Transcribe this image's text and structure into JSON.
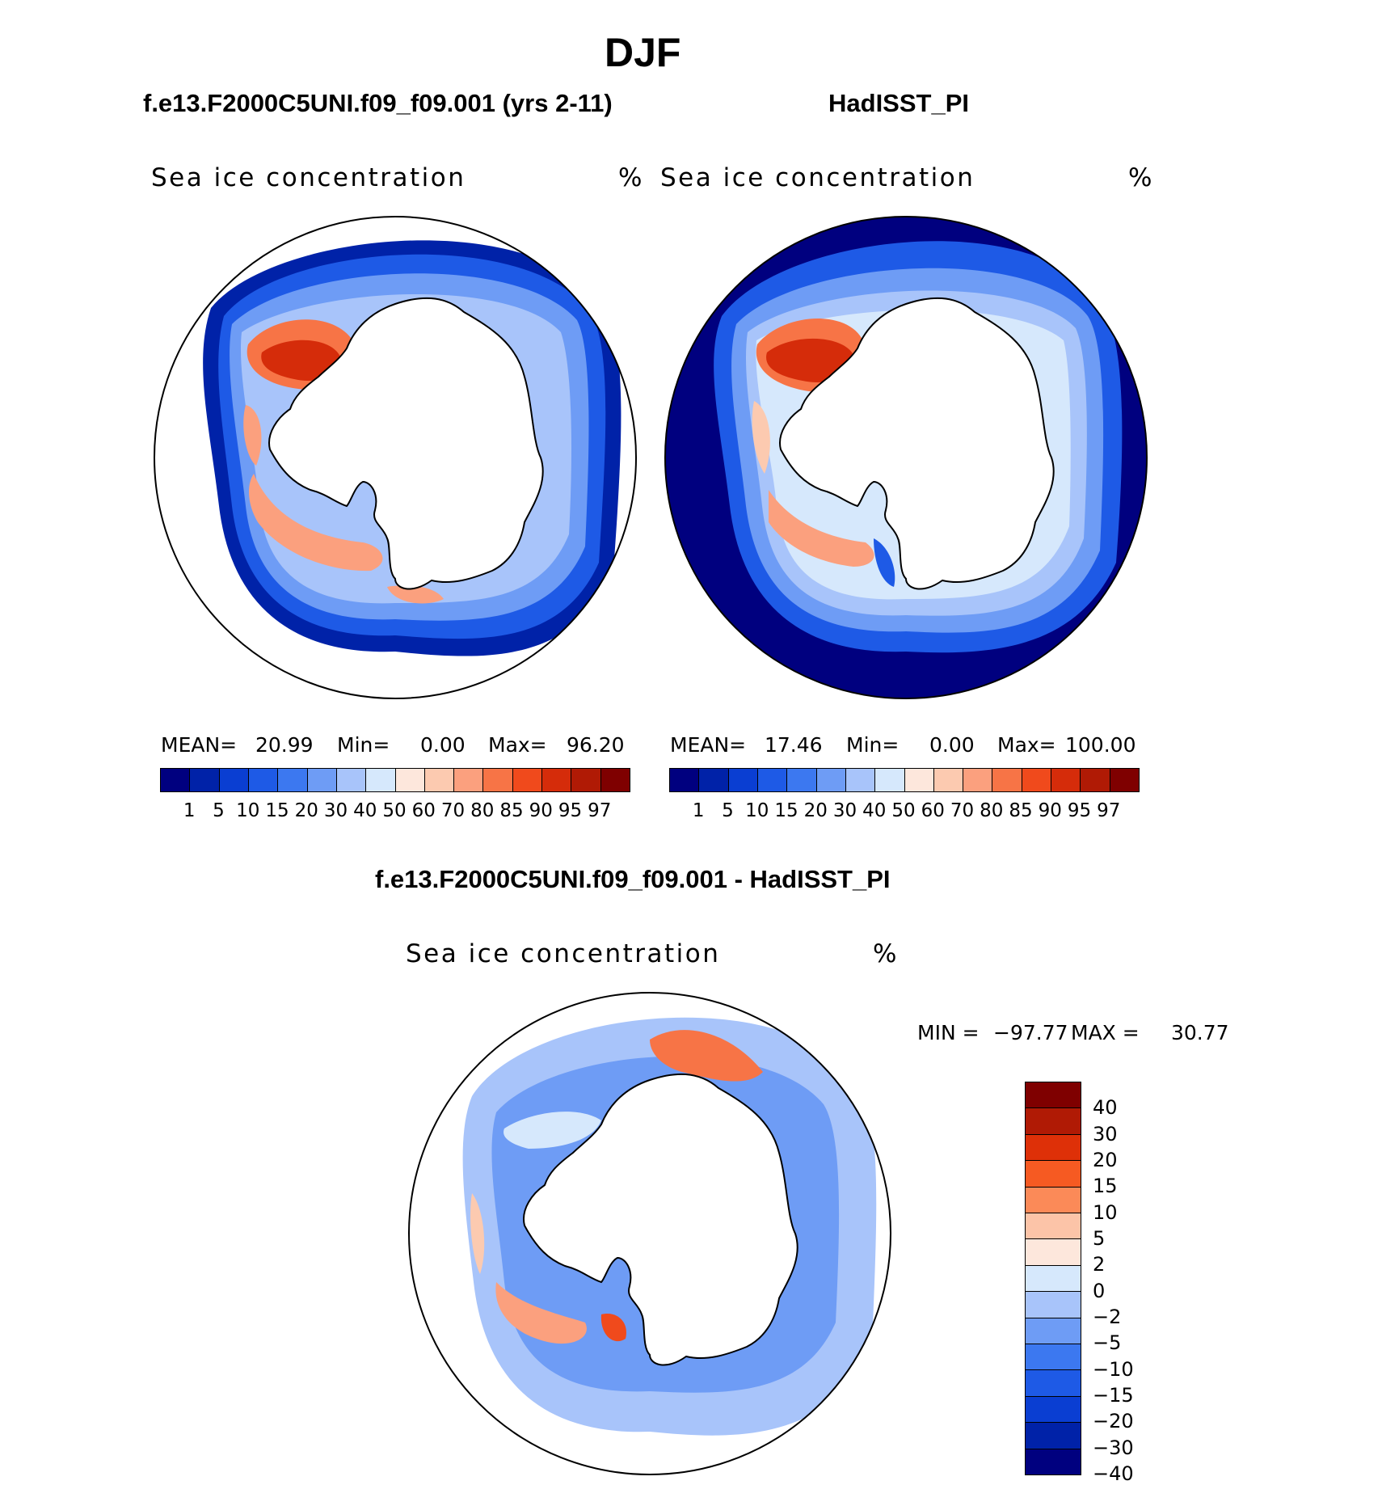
{
  "figure": {
    "season": "DJF",
    "field_label": "Sea ice concentration",
    "units": "%"
  },
  "panels": [
    {
      "title": "f.e13.F2000C5UNI.f09_f09.001 (yrs 2-11)",
      "stats": {
        "mean_label": "MEAN=",
        "mean": "20.99",
        "min_label": "Min=",
        "min": "0.00",
        "max_label": "Max=",
        "max": "96.20"
      }
    },
    {
      "title": "HadISST_PI",
      "stats": {
        "mean_label": "MEAN=",
        "mean": "17.46",
        "min_label": "Min=",
        "min": "0.00",
        "max_label": "Max=",
        "max": "100.00"
      }
    },
    {
      "title": "f.e13.F2000C5UNI.f09_f09.001 - HadISST_PI",
      "stats": {
        "min_label": "MIN =",
        "min": "−97.77",
        "max_label": "MAX =",
        "max": "30.77"
      }
    }
  ],
  "colorbars": {
    "concentration": {
      "colors": [
        "#00007f",
        "#0022a8",
        "#0a3ed2",
        "#1e5ae6",
        "#3c78f0",
        "#6e9cf5",
        "#a8c4fa",
        "#d6e8fc",
        "#fde7dc",
        "#fccab0",
        "#fba07e",
        "#f77446",
        "#f04a1c",
        "#d52c0a",
        "#b01a05",
        "#7f0000"
      ],
      "ticks": [
        "1",
        "5",
        "10",
        "15",
        "20",
        "30",
        "40",
        "50",
        "60",
        "70",
        "80",
        "85",
        "90",
        "95",
        "97"
      ]
    },
    "difference": {
      "colors": [
        "#7f0000",
        "#b01a05",
        "#de3008",
        "#f65a22",
        "#fb8a58",
        "#fcc4a8",
        "#fde7dc",
        "#d6e8fc",
        "#a8c4fa",
        "#6e9cf5",
        "#3c78f0",
        "#1e5ae6",
        "#0a3ed2",
        "#0022a8",
        "#00007f"
      ],
      "ticks": [
        "40",
        "30",
        "20",
        "15",
        "10",
        "5",
        "2",
        "0",
        "−2",
        "−5",
        "−10",
        "−15",
        "−20",
        "−30",
        "−40"
      ]
    }
  }
}
